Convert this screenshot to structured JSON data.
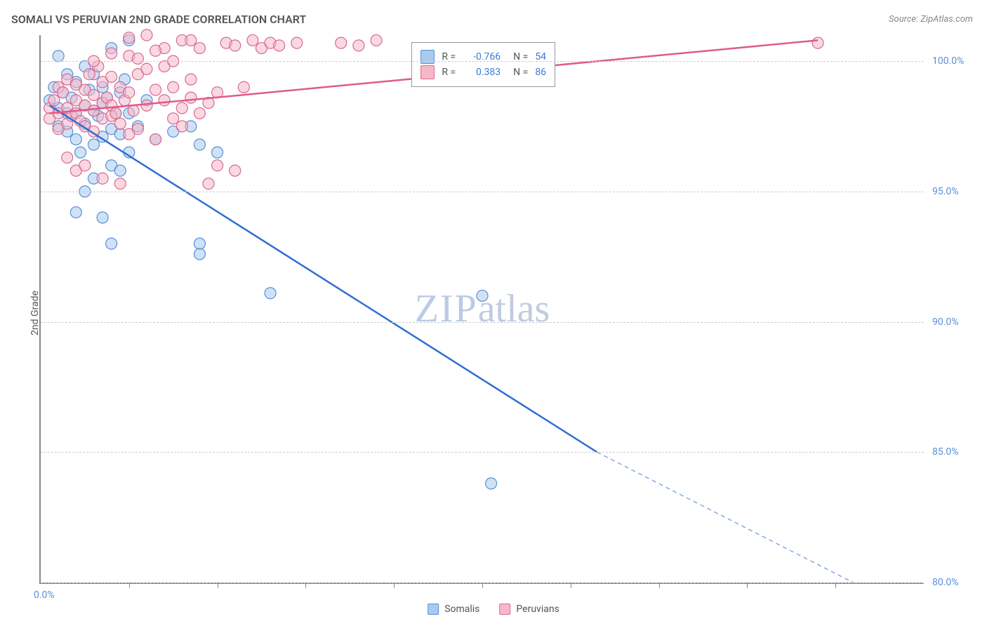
{
  "title": "SOMALI VS PERUVIAN 2ND GRADE CORRELATION CHART",
  "source": "Source: ZipAtlas.com",
  "y_axis_label": "2nd Grade",
  "watermark": {
    "text1": "ZIP",
    "text2": "atlas"
  },
  "chart": {
    "type": "scatter-with-regression",
    "xlim": [
      0,
      100
    ],
    "ylim": [
      80,
      101
    ],
    "y_ticks": [
      80.0,
      85.0,
      90.0,
      95.0,
      100.0
    ],
    "y_tick_labels": [
      "80.0%",
      "85.0%",
      "90.0%",
      "95.0%",
      "100.0%"
    ],
    "x_tick_marks": [
      10,
      20,
      30,
      40,
      50,
      60,
      70,
      80,
      90
    ],
    "x_origin_label": "0.0%",
    "grid_color": "#cccccc",
    "axis_color": "#888888",
    "background_color": "#ffffff",
    "marker_radius": 8,
    "marker_opacity": 0.55,
    "line_width": 2.5,
    "series": [
      {
        "name": "Somalis",
        "fill": "#a8cbed",
        "stroke": "#5a8fd8",
        "line_color": "#2e6fd3",
        "R": "-0.766",
        "N": "54",
        "regression": {
          "x1": 1,
          "y1": 98.3,
          "x2": 63,
          "y2": 85.0,
          "dash_to_x": 92,
          "dash_to_y": 80.0
        },
        "points": [
          [
            1,
            98.5
          ],
          [
            1.5,
            99
          ],
          [
            2,
            98.2
          ],
          [
            2,
            97.5
          ],
          [
            2,
            100.2
          ],
          [
            2.5,
            98.8
          ],
          [
            3,
            98.0
          ],
          [
            3,
            97.3
          ],
          [
            3,
            99.5
          ],
          [
            3.5,
            98.6
          ],
          [
            4,
            99.2
          ],
          [
            4,
            98.0
          ],
          [
            4,
            97.0
          ],
          [
            4.5,
            96.5
          ],
          [
            5,
            98.3
          ],
          [
            5,
            99.8
          ],
          [
            5,
            97.6
          ],
          [
            5.5,
            98.9
          ],
          [
            6,
            98.1
          ],
          [
            6,
            96.8
          ],
          [
            6,
            99.5
          ],
          [
            6.5,
            97.9
          ],
          [
            7,
            98.4
          ],
          [
            7,
            97.1
          ],
          [
            7,
            99.0
          ],
          [
            7.5,
            98.6
          ],
          [
            8,
            97.4
          ],
          [
            8,
            100.5
          ],
          [
            8,
            96.0
          ],
          [
            8.5,
            98.0
          ],
          [
            9,
            97.2
          ],
          [
            9,
            98.8
          ],
          [
            9.5,
            99.3
          ],
          [
            10,
            98.0
          ],
          [
            10,
            96.5
          ],
          [
            4,
            94.2
          ],
          [
            6,
            95.5
          ],
          [
            7,
            94.0
          ],
          [
            8,
            93.0
          ],
          [
            5,
            95.0
          ],
          [
            9,
            95.8
          ],
          [
            11,
            97.5
          ],
          [
            12,
            98.5
          ],
          [
            13,
            97.0
          ],
          [
            15,
            97.3
          ],
          [
            17,
            97.5
          ],
          [
            18,
            96.8
          ],
          [
            18,
            93.0
          ],
          [
            18,
            92.6
          ],
          [
            20,
            96.5
          ],
          [
            26,
            91.1
          ],
          [
            10,
            100.8
          ],
          [
            50,
            91.0
          ],
          [
            51,
            83.8
          ]
        ]
      },
      {
        "name": "Peruvians",
        "fill": "#f4b8c9",
        "stroke": "#d96a8f",
        "line_color": "#e05a88",
        "R": "0.383",
        "N": "86",
        "regression": {
          "x1": 1,
          "y1": 98.0,
          "x2": 88,
          "y2": 100.8
        },
        "points": [
          [
            1,
            98.2
          ],
          [
            1,
            97.8
          ],
          [
            1.5,
            98.5
          ],
          [
            2,
            98.0
          ],
          [
            2,
            97.4
          ],
          [
            2,
            99.0
          ],
          [
            2.5,
            98.8
          ],
          [
            3,
            98.2
          ],
          [
            3,
            97.6
          ],
          [
            3,
            99.3
          ],
          [
            3.5,
            97.9
          ],
          [
            4,
            98.5
          ],
          [
            4,
            98.0
          ],
          [
            4,
            99.1
          ],
          [
            4.5,
            97.7
          ],
          [
            5,
            98.3
          ],
          [
            5,
            98.9
          ],
          [
            5,
            97.5
          ],
          [
            5.5,
            99.5
          ],
          [
            6,
            98.1
          ],
          [
            6,
            97.3
          ],
          [
            6,
            98.7
          ],
          [
            6.5,
            99.8
          ],
          [
            7,
            98.4
          ],
          [
            7,
            97.8
          ],
          [
            7,
            99.2
          ],
          [
            7.5,
            98.6
          ],
          [
            8,
            97.9
          ],
          [
            8,
            98.3
          ],
          [
            8,
            99.4
          ],
          [
            8.5,
            98.0
          ],
          [
            9,
            99.0
          ],
          [
            9,
            97.6
          ],
          [
            9.5,
            98.5
          ],
          [
            10,
            97.2
          ],
          [
            10,
            98.8
          ],
          [
            10,
            100.2
          ],
          [
            10.5,
            98.1
          ],
          [
            11,
            99.5
          ],
          [
            11,
            97.4
          ],
          [
            12,
            98.3
          ],
          [
            12,
            99.7
          ],
          [
            3,
            96.3
          ],
          [
            4,
            95.8
          ],
          [
            5,
            96.0
          ],
          [
            7,
            95.5
          ],
          [
            9,
            95.3
          ],
          [
            13,
            98.9
          ],
          [
            13,
            97.0
          ],
          [
            14,
            98.5
          ],
          [
            14,
            100.5
          ],
          [
            15,
            99.0
          ],
          [
            15,
            97.8
          ],
          [
            16,
            98.2
          ],
          [
            16,
            100.8
          ],
          [
            17,
            98.6
          ],
          [
            17,
            99.3
          ],
          [
            18,
            98.0
          ],
          [
            18,
            100.5
          ],
          [
            19,
            98.4
          ],
          [
            19,
            95.3
          ],
          [
            20,
            96.0
          ],
          [
            20,
            98.8
          ],
          [
            21,
            100.7
          ],
          [
            22,
            100.6
          ],
          [
            23,
            99.0
          ],
          [
            24,
            100.8
          ],
          [
            25,
            100.5
          ],
          [
            26,
            100.7
          ],
          [
            10,
            100.9
          ],
          [
            12,
            101.0
          ],
          [
            14,
            99.8
          ],
          [
            16,
            97.5
          ],
          [
            22,
            95.8
          ],
          [
            34,
            100.7
          ],
          [
            36,
            100.6
          ],
          [
            38,
            100.8
          ],
          [
            88,
            100.7
          ],
          [
            6,
            100.0
          ],
          [
            8,
            100.3
          ],
          [
            11,
            100.1
          ],
          [
            13,
            100.4
          ],
          [
            15,
            100.0
          ],
          [
            27,
            100.6
          ],
          [
            29,
            100.7
          ],
          [
            17,
            100.8
          ]
        ]
      }
    ]
  },
  "rn_box": {
    "rows": [
      {
        "swatch_fill": "#a8cbed",
        "swatch_stroke": "#5a8fd8",
        "r_label": "R =",
        "r_val": "-0.766",
        "n_label": "N =",
        "n_val": "54"
      },
      {
        "swatch_fill": "#f4b8c9",
        "swatch_stroke": "#d96a8f",
        "r_label": "R =",
        "r_val": "0.383",
        "n_label": "N =",
        "n_val": "86"
      }
    ]
  },
  "bottom_legend": [
    {
      "label": "Somalis",
      "fill": "#a8cbed",
      "stroke": "#5a8fd8"
    },
    {
      "label": "Peruvians",
      "fill": "#f4b8c9",
      "stroke": "#d96a8f"
    }
  ]
}
